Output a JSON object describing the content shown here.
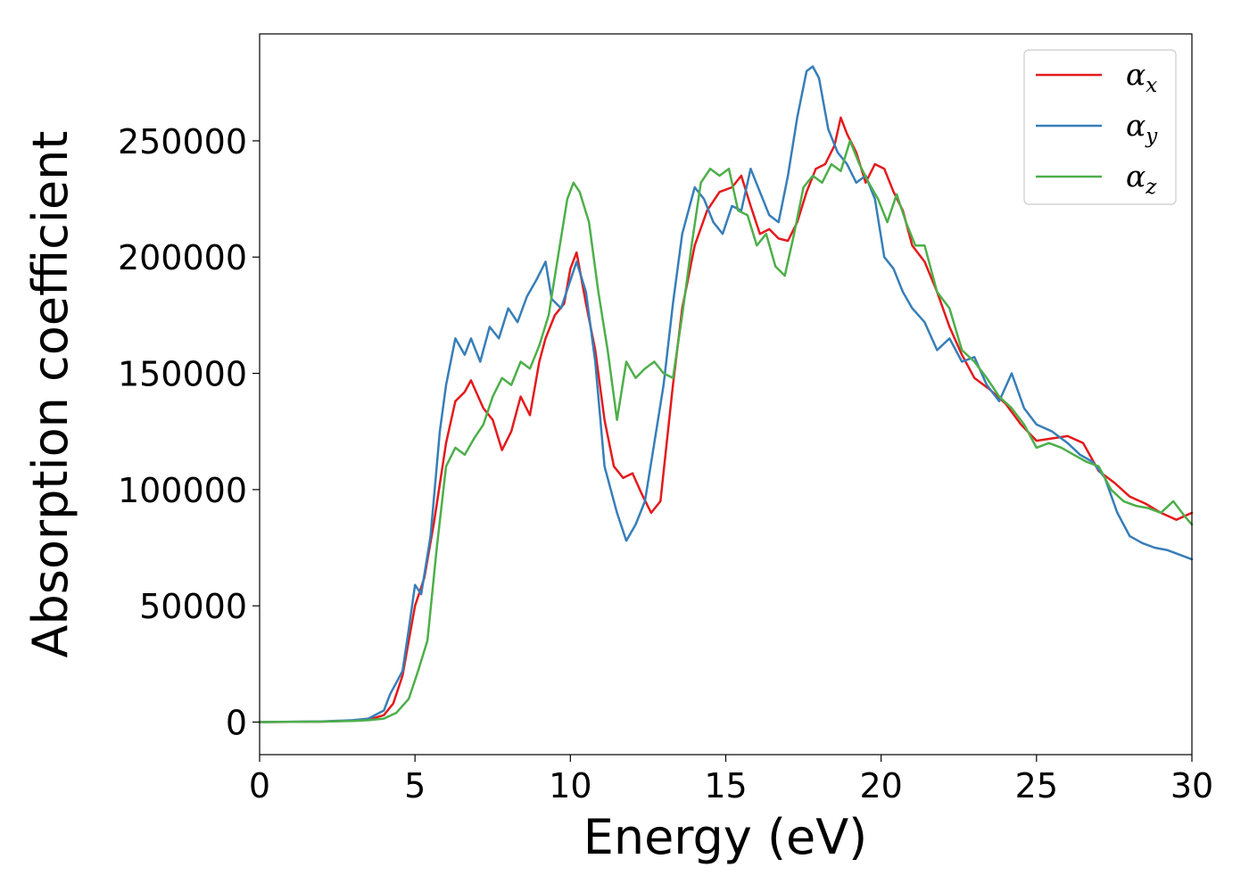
{
  "chart_data": {
    "type": "line",
    "xlabel": "Energy (eV)",
    "ylabel": "Absorption coefficient",
    "xlim": [
      0,
      30
    ],
    "ylim": [
      -14000,
      296000
    ],
    "xticks": [
      "0",
      "5",
      "10",
      "15",
      "20",
      "25",
      "30"
    ],
    "yticks": [
      "0",
      "50000",
      "100000",
      "150000",
      "200000",
      "250000"
    ],
    "grid": false,
    "legend_position": "top-right",
    "series": [
      {
        "name": "α",
        "subscript": "x",
        "color": "#e41a1c",
        "x": [
          0,
          2,
          3,
          3.5,
          4,
          4.3,
          4.6,
          4.8,
          5,
          5.3,
          5.6,
          6,
          6.3,
          6.6,
          6.8,
          7.2,
          7.5,
          7.8,
          8.1,
          8.4,
          8.7,
          9,
          9.2,
          9.5,
          9.8,
          10,
          10.2,
          10.5,
          10.8,
          11.1,
          11.4,
          11.7,
          12,
          12.3,
          12.6,
          12.9,
          13.3,
          13.6,
          14,
          14.4,
          14.8,
          15.2,
          15.5,
          15.8,
          16.1,
          16.4,
          16.7,
          17,
          17.3,
          17.6,
          17.9,
          18.2,
          18.5,
          18.7,
          18.9,
          19.2,
          19.5,
          19.8,
          20.1,
          20.4,
          20.7,
          21,
          21.4,
          21.8,
          22.2,
          22.6,
          23,
          23.5,
          24,
          24.5,
          25,
          25.5,
          26,
          26.5,
          27,
          27.5,
          28,
          28.5,
          29,
          29.5,
          30
        ],
        "values": [
          0,
          200,
          600,
          1000,
          3000,
          8000,
          20000,
          35000,
          50000,
          62000,
          85000,
          120000,
          138000,
          142000,
          147000,
          135000,
          130000,
          117000,
          125000,
          140000,
          132000,
          155000,
          165000,
          175000,
          180000,
          195000,
          202000,
          180000,
          160000,
          130000,
          110000,
          105000,
          107000,
          98000,
          90000,
          95000,
          145000,
          178000,
          205000,
          220000,
          228000,
          230000,
          235000,
          222000,
          210000,
          212000,
          208000,
          207000,
          215000,
          228000,
          238000,
          240000,
          248000,
          260000,
          253000,
          245000,
          232000,
          240000,
          238000,
          228000,
          220000,
          205000,
          198000,
          185000,
          170000,
          158000,
          148000,
          143000,
          137000,
          128000,
          121000,
          122000,
          123000,
          120000,
          108000,
          103000,
          97000,
          94000,
          90000,
          87000,
          90000
        ]
      },
      {
        "name": "α",
        "subscript": "y",
        "color": "#377eb8",
        "x": [
          0,
          2,
          3,
          3.5,
          4,
          4.2,
          4.4,
          4.6,
          4.8,
          5,
          5.2,
          5.5,
          5.8,
          6,
          6.3,
          6.6,
          6.8,
          7.1,
          7.4,
          7.7,
          8,
          8.3,
          8.6,
          8.9,
          9.2,
          9.4,
          9.7,
          10,
          10.2,
          10.5,
          10.8,
          11.1,
          11.5,
          11.8,
          12.1,
          12.4,
          12.7,
          13,
          13.3,
          13.6,
          14,
          14.3,
          14.6,
          14.9,
          15.2,
          15.5,
          15.8,
          16.1,
          16.4,
          16.7,
          17,
          17.3,
          17.6,
          17.8,
          18,
          18.3,
          18.6,
          18.9,
          19.2,
          19.5,
          19.8,
          20.1,
          20.4,
          20.7,
          21,
          21.4,
          21.8,
          22.2,
          22.6,
          23,
          23.4,
          23.8,
          24.2,
          24.6,
          25,
          25.5,
          26,
          26.4,
          26.8,
          27.2,
          27.6,
          28,
          28.4,
          28.8,
          29.2,
          29.6,
          30
        ],
        "values": [
          0,
          300,
          800,
          1500,
          5000,
          12000,
          17000,
          22000,
          40000,
          59000,
          55000,
          80000,
          125000,
          145000,
          165000,
          158000,
          165000,
          155000,
          170000,
          165000,
          178000,
          172000,
          183000,
          190000,
          198000,
          182000,
          178000,
          190000,
          198000,
          185000,
          155000,
          110000,
          90000,
          78000,
          85000,
          95000,
          120000,
          145000,
          180000,
          210000,
          230000,
          225000,
          215000,
          210000,
          222000,
          220000,
          238000,
          228000,
          218000,
          215000,
          235000,
          260000,
          280000,
          282000,
          277000,
          255000,
          245000,
          240000,
          232000,
          235000,
          225000,
          200000,
          195000,
          185000,
          178000,
          172000,
          160000,
          165000,
          155000,
          157000,
          145000,
          138000,
          150000,
          135000,
          128000,
          125000,
          120000,
          115000,
          112000,
          105000,
          90000,
          80000,
          77000,
          75000,
          74000,
          72000,
          70000
        ]
      },
      {
        "name": "α",
        "subscript": "z",
        "color": "#4daf4a",
        "x": [
          0,
          2,
          3,
          3.5,
          4,
          4.4,
          4.8,
          5.1,
          5.4,
          5.7,
          6,
          6.3,
          6.6,
          6.9,
          7.2,
          7.5,
          7.8,
          8.1,
          8.4,
          8.7,
          9,
          9.3,
          9.6,
          9.9,
          10.1,
          10.3,
          10.6,
          10.9,
          11.2,
          11.5,
          11.8,
          12.1,
          12.4,
          12.7,
          13,
          13.3,
          13.6,
          13.9,
          14.2,
          14.5,
          14.8,
          15.1,
          15.4,
          15.7,
          16,
          16.3,
          16.6,
          16.9,
          17.2,
          17.5,
          17.8,
          18.1,
          18.4,
          18.7,
          19,
          19.3,
          19.6,
          19.9,
          20.2,
          20.5,
          20.8,
          21.1,
          21.4,
          21.8,
          22.2,
          22.6,
          23,
          23.4,
          23.8,
          24.2,
          24.6,
          25,
          25.4,
          25.8,
          26.2,
          26.6,
          27,
          27.4,
          27.8,
          28.2,
          28.6,
          29,
          29.4,
          29.8,
          30
        ],
        "values": [
          0,
          200,
          500,
          800,
          1500,
          4000,
          10000,
          22000,
          35000,
          75000,
          110000,
          118000,
          115000,
          122000,
          128000,
          140000,
          148000,
          145000,
          155000,
          152000,
          162000,
          175000,
          200000,
          225000,
          232000,
          228000,
          215000,
          185000,
          160000,
          130000,
          155000,
          148000,
          152000,
          155000,
          150000,
          148000,
          175000,
          205000,
          232000,
          238000,
          235000,
          238000,
          220000,
          218000,
          205000,
          210000,
          196000,
          192000,
          210000,
          230000,
          235000,
          232000,
          240000,
          237000,
          250000,
          240000,
          232000,
          225000,
          215000,
          227000,
          215000,
          205000,
          205000,
          185000,
          178000,
          160000,
          155000,
          148000,
          140000,
          135000,
          128000,
          118000,
          120000,
          118000,
          115000,
          112000,
          110000,
          100000,
          95000,
          93000,
          92000,
          90000,
          95000,
          88000,
          85000
        ]
      }
    ]
  }
}
